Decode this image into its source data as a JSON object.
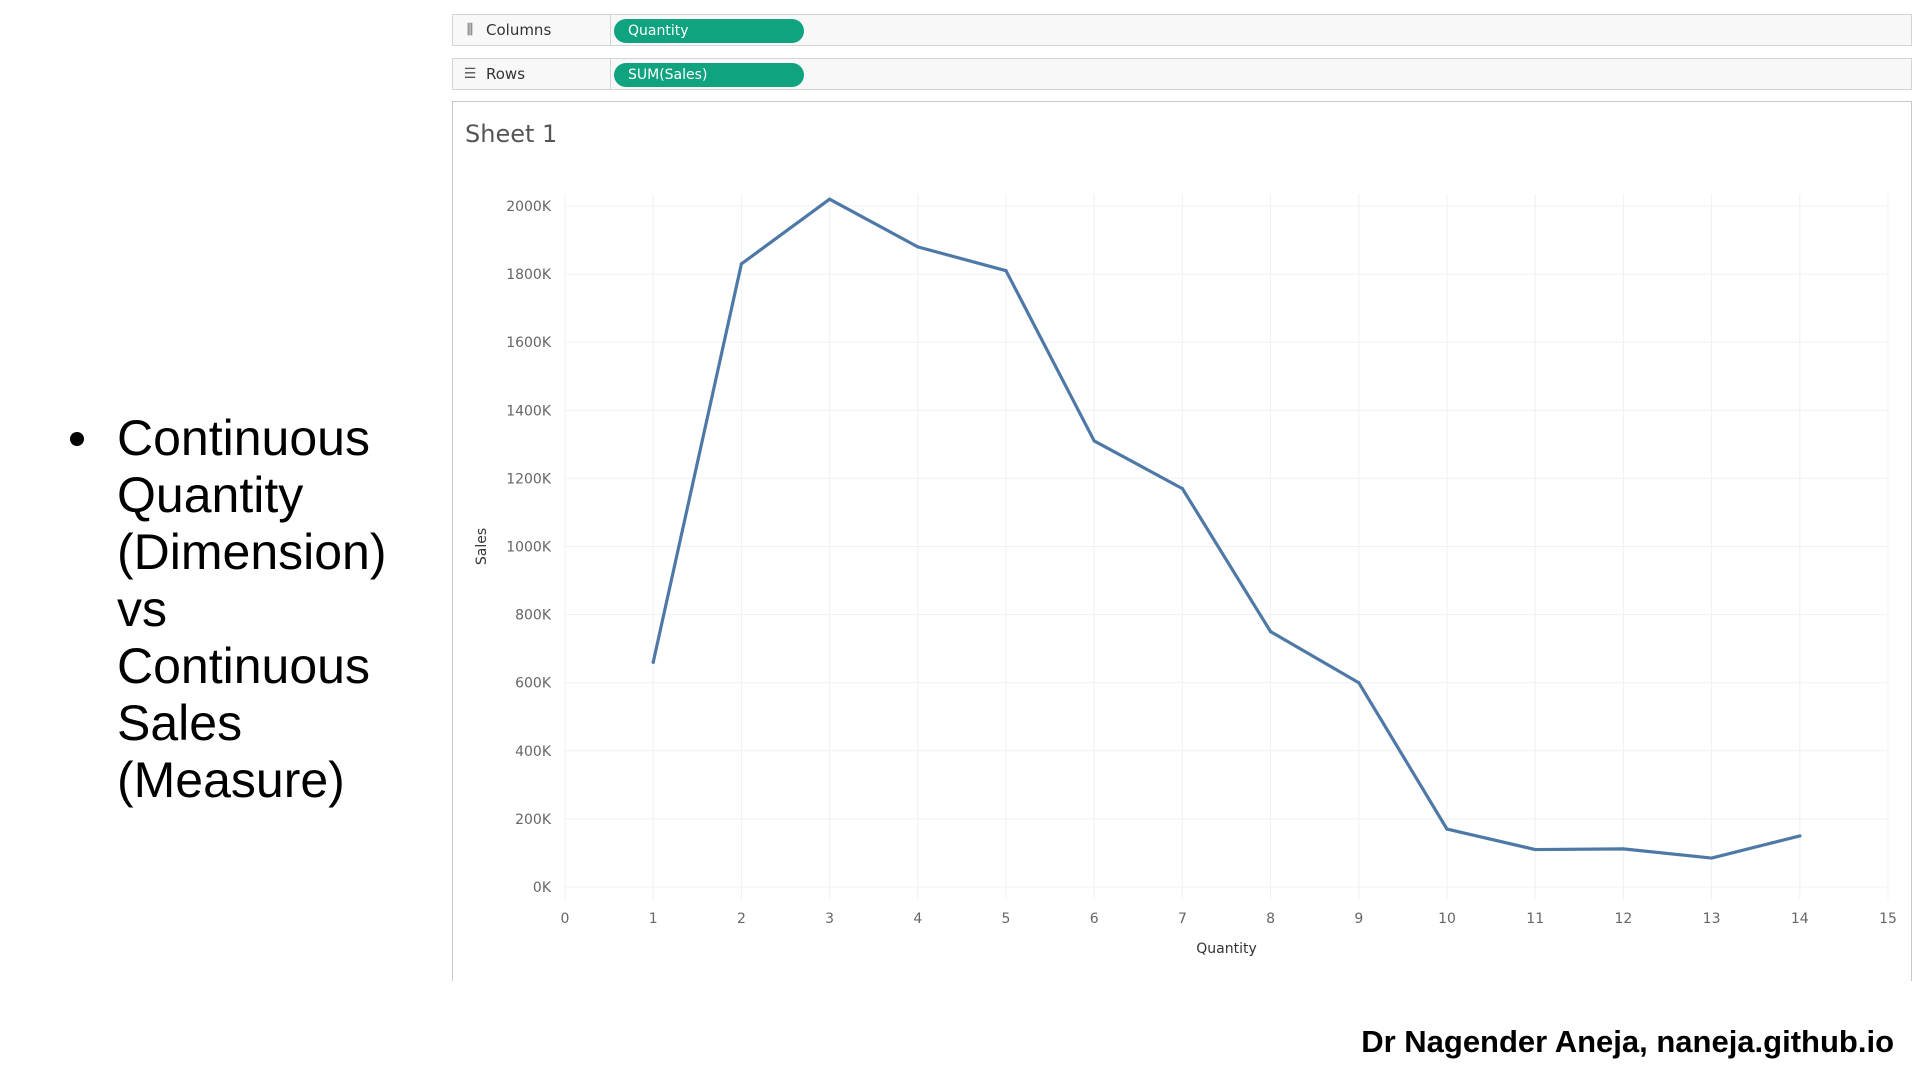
{
  "bullet": {
    "lines": [
      "Continuous",
      "Quantity",
      "(Dimension)",
      "vs",
      "Continuous",
      "Sales",
      "(Measure)"
    ]
  },
  "shelves": {
    "columns": {
      "label": "Columns",
      "icon": "columns-icon",
      "pill": "Quantity"
    },
    "rows": {
      "label": "Rows",
      "icon": "rows-icon",
      "pill": "SUM(Sales)"
    }
  },
  "sheet": {
    "title": "Sheet 1"
  },
  "colors": {
    "pill": "#0fa37f",
    "line": "#4e79a7"
  },
  "chart_data": {
    "type": "line",
    "xlabel": "Quantity",
    "ylabel": "Sales",
    "x_ticks": [
      "0",
      "1",
      "2",
      "3",
      "4",
      "5",
      "6",
      "7",
      "8",
      "9",
      "10",
      "11",
      "12",
      "13",
      "14",
      "15"
    ],
    "y_ticks": [
      "0K",
      "200K",
      "400K",
      "600K",
      "800K",
      "1000K",
      "1200K",
      "1400K",
      "1600K",
      "1800K",
      "2000K"
    ],
    "xlim": [
      0,
      15
    ],
    "ylim": [
      0,
      2000000
    ],
    "grid": true,
    "series": [
      {
        "x": [
          1,
          2,
          3,
          4,
          5,
          6,
          7,
          8,
          9,
          10,
          11,
          12,
          13,
          14
        ],
        "values": [
          660000,
          1830000,
          2020000,
          1880000,
          1810000,
          1310000,
          1170000,
          750000,
          600000,
          170000,
          110000,
          112000,
          85000,
          150000
        ]
      }
    ]
  },
  "footer": {
    "credit": "Dr Nagender Aneja, naneja.github.io"
  }
}
